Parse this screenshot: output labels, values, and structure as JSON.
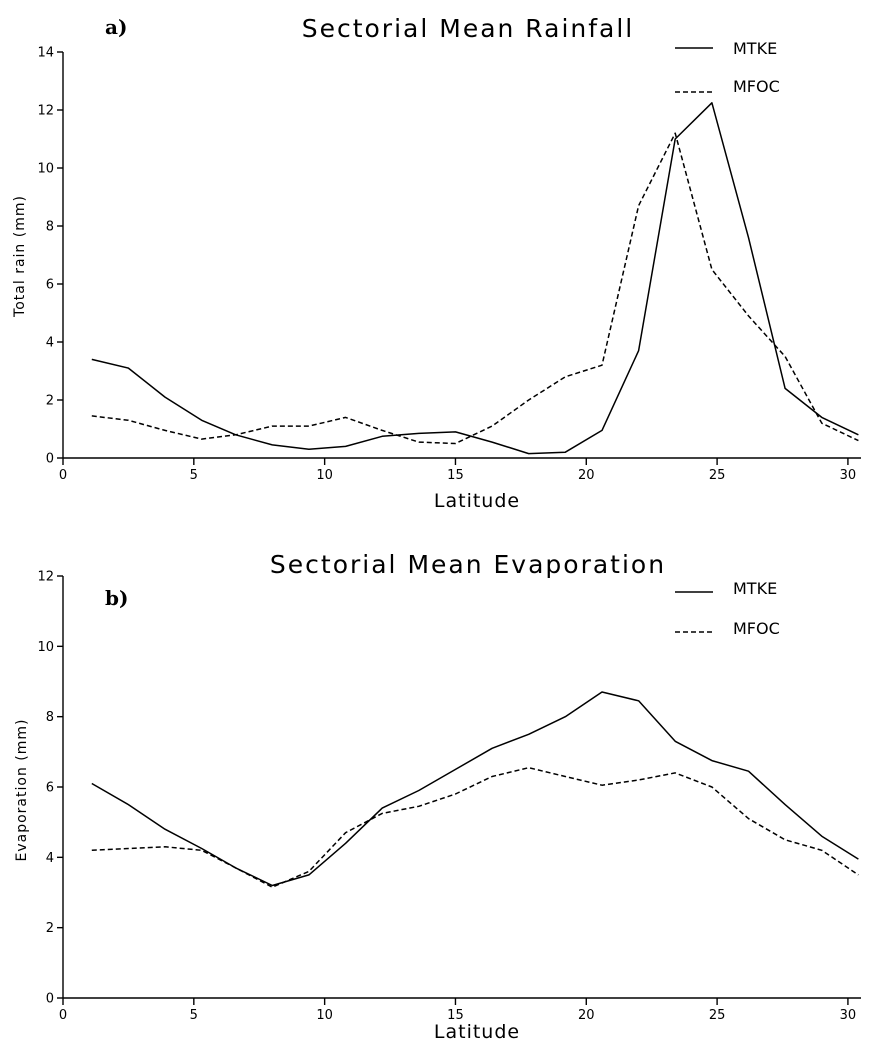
{
  "chart_data": [
    {
      "type": "line",
      "panel_label": "a)",
      "title": "Sectorial Mean Rainfall",
      "xlabel": "Latitude",
      "ylabel": "Total rain (mm)",
      "xlim": [
        0,
        30.5
      ],
      "ylim": [
        0,
        14
      ],
      "xticks": [
        0,
        5,
        10,
        15,
        20,
        25,
        30
      ],
      "yticks": [
        0,
        2,
        4,
        6,
        8,
        10,
        12,
        14
      ],
      "grid": false,
      "legend_position": "top-right",
      "series": [
        {
          "name": "MTKE",
          "style": "solid",
          "x": [
            1.1,
            2.5,
            3.9,
            5.3,
            6.6,
            8.0,
            9.4,
            10.8,
            12.2,
            13.6,
            15.0,
            16.4,
            17.8,
            19.2,
            20.6,
            22.0,
            23.4,
            24.8,
            26.2,
            27.6,
            29.0,
            30.4
          ],
          "y": [
            3.4,
            3.1,
            2.1,
            1.3,
            0.8,
            0.45,
            0.3,
            0.4,
            0.75,
            0.85,
            0.9,
            0.55,
            0.15,
            0.2,
            0.95,
            3.7,
            11.0,
            12.25,
            7.6,
            2.4,
            1.4,
            0.8
          ]
        },
        {
          "name": "MFOC",
          "style": "dashed",
          "x": [
            1.1,
            2.5,
            3.9,
            5.3,
            6.6,
            8.0,
            9.4,
            10.8,
            12.2,
            13.6,
            15.0,
            16.4,
            17.8,
            19.2,
            20.6,
            22.0,
            23.4,
            24.8,
            26.2,
            27.6,
            29.0,
            30.4
          ],
          "y": [
            1.45,
            1.3,
            0.95,
            0.65,
            0.8,
            1.1,
            1.1,
            1.4,
            0.95,
            0.55,
            0.5,
            1.1,
            2.0,
            2.8,
            3.2,
            8.7,
            11.2,
            6.5,
            4.9,
            3.5,
            1.2,
            0.6
          ]
        }
      ]
    },
    {
      "type": "line",
      "panel_label": "b)",
      "title": "Sectorial Mean Evaporation",
      "xlabel": "Latitude",
      "ylabel": "Evaporation (mm)",
      "xlim": [
        0,
        30.5
      ],
      "ylim": [
        0,
        12
      ],
      "xticks": [
        0,
        5,
        10,
        15,
        20,
        25,
        30
      ],
      "yticks": [
        0,
        2,
        4,
        6,
        8,
        10,
        12
      ],
      "grid": false,
      "legend_position": "top-right",
      "series": [
        {
          "name": "MTKE",
          "style": "solid",
          "x": [
            1.1,
            2.5,
            3.9,
            5.3,
            6.6,
            8.0,
            9.4,
            10.8,
            12.2,
            13.6,
            15.0,
            16.4,
            17.8,
            19.2,
            20.6,
            22.0,
            23.4,
            24.8,
            26.2,
            27.6,
            29.0,
            30.4
          ],
          "y": [
            6.1,
            5.5,
            4.8,
            4.25,
            3.7,
            3.2,
            3.5,
            4.4,
            5.4,
            5.9,
            6.5,
            7.1,
            7.5,
            8.0,
            8.7,
            8.45,
            7.3,
            6.75,
            6.45,
            5.5,
            4.6,
            3.95
          ]
        },
        {
          "name": "MFOC",
          "style": "dashed",
          "x": [
            1.1,
            2.5,
            3.9,
            5.3,
            6.6,
            8.0,
            9.4,
            10.8,
            12.2,
            13.6,
            15.0,
            16.4,
            17.8,
            19.2,
            20.6,
            22.0,
            23.4,
            24.8,
            26.2,
            27.6,
            29.0,
            30.4
          ],
          "y": [
            4.2,
            4.25,
            4.3,
            4.2,
            3.7,
            3.15,
            3.6,
            4.7,
            5.25,
            5.45,
            5.8,
            6.3,
            6.55,
            6.3,
            6.05,
            6.2,
            6.4,
            6.0,
            5.1,
            4.5,
            4.2,
            3.5
          ]
        }
      ]
    }
  ]
}
